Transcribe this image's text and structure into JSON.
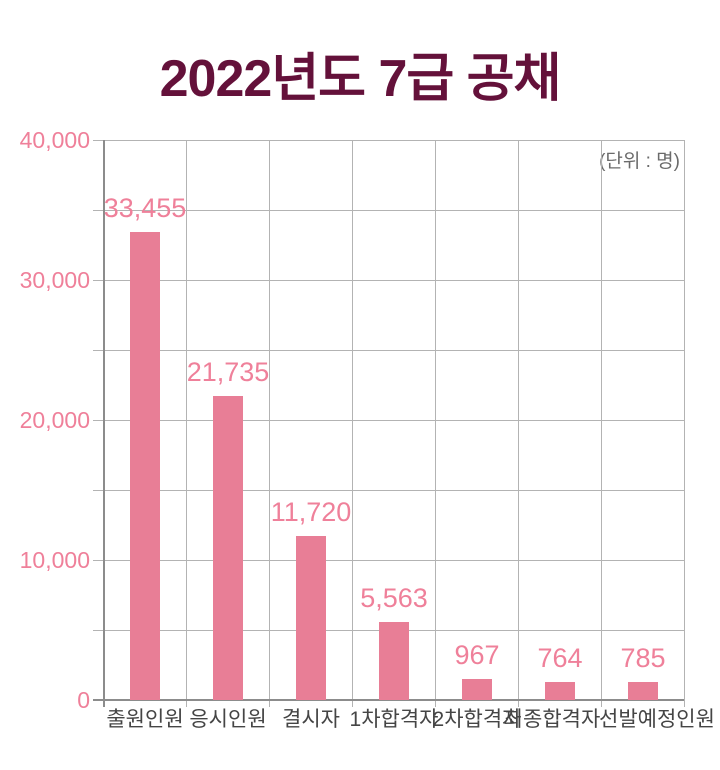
{
  "header": {
    "title": "2022년도 7급 공채"
  },
  "colors": {
    "background": "#ffffff",
    "title": "#64113A",
    "bar": "#E87E96",
    "pink_text": "#EF809A",
    "category_label": "#454545",
    "gridline": "#B3B3B3",
    "axis_line": "#8C8C8C",
    "unit_note": "#6B6B6B"
  },
  "chart_data": {
    "type": "bar",
    "title": "2022년도 7급 공채",
    "unit_note": "(단위 : 명)",
    "categories": [
      "출원인원",
      "응시인원",
      "결시자",
      "1차합격자",
      "2차합격자",
      "최종합격자",
      "선발예정인원"
    ],
    "values": [
      33455,
      21735,
      11720,
      5563,
      967,
      764,
      785
    ],
    "value_labels": [
      "33,455",
      "21,735",
      "11,720",
      "5,563",
      "967",
      "764",
      "785"
    ],
    "xlabel": "",
    "ylabel": "",
    "ylim": [
      0,
      40000
    ],
    "y_tick_interval": 10000,
    "y_gridline_interval": 5000,
    "y_tick_labels": [
      "0",
      "10,000",
      "20,000",
      "30,000",
      "40,000"
    ],
    "grid": true,
    "legend": false,
    "bar_color": "#E87E96"
  }
}
